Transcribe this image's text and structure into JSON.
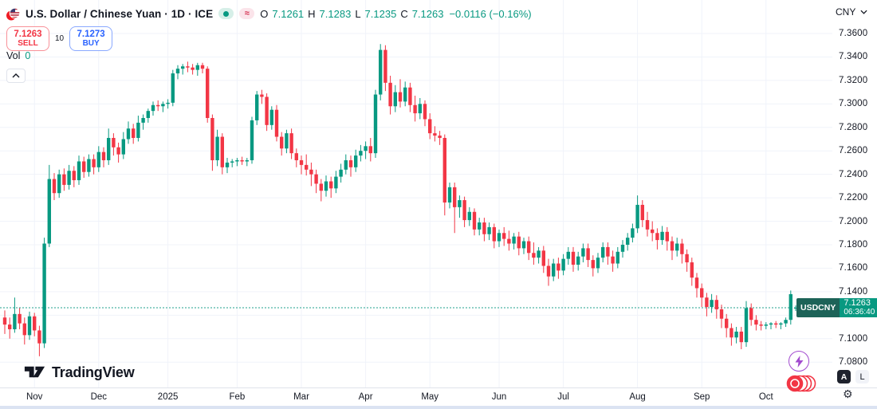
{
  "header": {
    "title": "U.S. Dollar / Chinese Yuan · 1D · ICE",
    "market_status": "open",
    "delay_badge": "≈",
    "ohlc": {
      "o_key": "O",
      "o": "7.1261",
      "h_key": "H",
      "h": "7.1283",
      "l_key": "L",
      "l": "7.1235",
      "c_key": "C",
      "c": "7.1263",
      "change": "−0.0116 (−0.16%)"
    }
  },
  "trade_panel": {
    "sell_price": "7.1263",
    "sell_label": "SELL",
    "spread": "10",
    "buy_price": "7.1273",
    "buy_label": "BUY"
  },
  "volume": {
    "label": "Vol",
    "value": "0"
  },
  "price_scale": {
    "currency": "CNY",
    "auto_label": "A",
    "log_label": "L",
    "gear": "⚙"
  },
  "price_label": {
    "symbol": "USDCNY",
    "price": "7.1263",
    "countdown": "06:36:40"
  },
  "footer": {
    "brand": "TradingView"
  },
  "colors": {
    "up": "#089981",
    "down": "#f23645",
    "buy_blue": "#2962ff",
    "sell_red": "#f23645",
    "grid": "#f0f3fa",
    "text": "#131722",
    "price_label_bg": "#089981",
    "symbol_tag_bg": "#1d6358"
  },
  "chart_data": {
    "type": "candlestick",
    "symbol": "USDCNY",
    "title": "U.S. Dollar / Chinese Yuan",
    "interval": "1D",
    "exchange": "ICE",
    "grid": true,
    "legend_position": "top-left",
    "ylim": [
      7.08,
      7.36
    ],
    "y_ticks": [
      7.36,
      7.34,
      7.32,
      7.3,
      7.28,
      7.26,
      7.24,
      7.22,
      7.2,
      7.18,
      7.16,
      7.14,
      7.12,
      7.1,
      7.08
    ],
    "x_labels": [
      {
        "label": "Nov",
        "i": 6
      },
      {
        "label": "Dec",
        "i": 19
      },
      {
        "label": "2025",
        "i": 33
      },
      {
        "label": "Feb",
        "i": 47
      },
      {
        "label": "Mar",
        "i": 60
      },
      {
        "label": "Apr",
        "i": 73
      },
      {
        "label": "May",
        "i": 86
      },
      {
        "label": "Jun",
        "i": 100
      },
      {
        "label": "Jul",
        "i": 113
      },
      {
        "label": "Aug",
        "i": 128
      },
      {
        "label": "Sep",
        "i": 141
      },
      {
        "label": "Oct",
        "i": 154
      }
    ],
    "last_price": 7.1263,
    "up_color": "#089981",
    "down_color": "#f23645",
    "grid_color": "#f0f3fa",
    "candles": [
      [
        7.118,
        7.124,
        7.104,
        7.112
      ],
      [
        7.112,
        7.118,
        7.1,
        7.108
      ],
      [
        7.108,
        7.135,
        7.105,
        7.121
      ],
      [
        7.121,
        7.126,
        7.108,
        7.113
      ],
      [
        7.113,
        7.118,
        7.095,
        7.103
      ],
      [
        7.103,
        7.123,
        7.099,
        7.119
      ],
      [
        7.119,
        7.122,
        7.102,
        7.107
      ],
      [
        7.107,
        7.111,
        7.085,
        7.096
      ],
      [
        7.096,
        7.186,
        7.092,
        7.181
      ],
      [
        7.181,
        7.248,
        7.178,
        7.236
      ],
      [
        7.236,
        7.241,
        7.218,
        7.224
      ],
      [
        7.224,
        7.244,
        7.22,
        7.24
      ],
      [
        7.24,
        7.245,
        7.226,
        7.231
      ],
      [
        7.231,
        7.248,
        7.227,
        7.243
      ],
      [
        7.243,
        7.247,
        7.229,
        7.235
      ],
      [
        7.235,
        7.256,
        7.231,
        7.251
      ],
      [
        7.251,
        7.255,
        7.237,
        7.242
      ],
      [
        7.242,
        7.257,
        7.238,
        7.253
      ],
      [
        7.253,
        7.257,
        7.24,
        7.246
      ],
      [
        7.246,
        7.264,
        7.242,
        7.259
      ],
      [
        7.259,
        7.263,
        7.246,
        7.252
      ],
      [
        7.252,
        7.279,
        7.248,
        7.271
      ],
      [
        7.271,
        7.275,
        7.256,
        7.263
      ],
      [
        7.263,
        7.267,
        7.25,
        7.257
      ],
      [
        7.257,
        7.276,
        7.253,
        7.27
      ],
      [
        7.27,
        7.285,
        7.266,
        7.279
      ],
      [
        7.279,
        7.283,
        7.266,
        7.271
      ],
      [
        7.271,
        7.29,
        7.268,
        7.284
      ],
      [
        7.284,
        7.291,
        7.278,
        7.288
      ],
      [
        7.288,
        7.296,
        7.284,
        7.294
      ],
      [
        7.294,
        7.302,
        7.29,
        7.299
      ],
      [
        7.299,
        7.303,
        7.294,
        7.298
      ],
      [
        7.298,
        7.302,
        7.293,
        7.3
      ],
      [
        7.3,
        7.304,
        7.296,
        7.301
      ],
      [
        7.301,
        7.329,
        7.298,
        7.326
      ],
      [
        7.326,
        7.333,
        7.321,
        7.33
      ],
      [
        7.33,
        7.334,
        7.325,
        7.332
      ],
      [
        7.332,
        7.336,
        7.327,
        7.331
      ],
      [
        7.331,
        7.334,
        7.325,
        7.329
      ],
      [
        7.329,
        7.335,
        7.324,
        7.333
      ],
      [
        7.333,
        7.335,
        7.326,
        7.33
      ],
      [
        7.33,
        7.332,
        7.284,
        7.288
      ],
      [
        7.288,
        7.291,
        7.243,
        7.252
      ],
      [
        7.252,
        7.278,
        7.247,
        7.272
      ],
      [
        7.272,
        7.275,
        7.24,
        7.246
      ],
      [
        7.246,
        7.254,
        7.241,
        7.25
      ],
      [
        7.25,
        7.253,
        7.246,
        7.251
      ],
      [
        7.251,
        7.254,
        7.247,
        7.252
      ],
      [
        7.252,
        7.255,
        7.248,
        7.251
      ],
      [
        7.251,
        7.254,
        7.247,
        7.252
      ],
      [
        7.252,
        7.289,
        7.249,
        7.286
      ],
      [
        7.286,
        7.311,
        7.282,
        7.308
      ],
      [
        7.308,
        7.312,
        7.3,
        7.306
      ],
      [
        7.306,
        7.309,
        7.277,
        7.282
      ],
      [
        7.282,
        7.298,
        7.278,
        7.295
      ],
      [
        7.295,
        7.299,
        7.268,
        7.272
      ],
      [
        7.272,
        7.276,
        7.256,
        7.262
      ],
      [
        7.262,
        7.278,
        7.258,
        7.275
      ],
      [
        7.275,
        7.279,
        7.253,
        7.258
      ],
      [
        7.258,
        7.262,
        7.246,
        7.252
      ],
      [
        7.252,
        7.256,
        7.24,
        7.248
      ],
      [
        7.248,
        7.257,
        7.239,
        7.244
      ],
      [
        7.244,
        7.25,
        7.23,
        7.24
      ],
      [
        7.24,
        7.244,
        7.224,
        7.232
      ],
      [
        7.232,
        7.236,
        7.217,
        7.226
      ],
      [
        7.226,
        7.239,
        7.221,
        7.234
      ],
      [
        7.234,
        7.238,
        7.22,
        7.228
      ],
      [
        7.228,
        7.243,
        7.224,
        7.238
      ],
      [
        7.238,
        7.249,
        7.233,
        7.244
      ],
      [
        7.244,
        7.257,
        7.24,
        7.252
      ],
      [
        7.252,
        7.256,
        7.238,
        7.246
      ],
      [
        7.246,
        7.261,
        7.242,
        7.256
      ],
      [
        7.256,
        7.265,
        7.251,
        7.26
      ],
      [
        7.26,
        7.268,
        7.253,
        7.264
      ],
      [
        7.264,
        7.271,
        7.251,
        7.258
      ],
      [
        7.258,
        7.312,
        7.254,
        7.308
      ],
      [
        7.308,
        7.351,
        7.303,
        7.346
      ],
      [
        7.346,
        7.35,
        7.311,
        7.318
      ],
      [
        7.318,
        7.324,
        7.291,
        7.298
      ],
      [
        7.298,
        7.316,
        7.293,
        7.31
      ],
      [
        7.31,
        7.321,
        7.297,
        7.302
      ],
      [
        7.302,
        7.319,
        7.298,
        7.314
      ],
      [
        7.314,
        7.318,
        7.293,
        7.299
      ],
      [
        7.299,
        7.307,
        7.285,
        7.292
      ],
      [
        7.292,
        7.305,
        7.287,
        7.3
      ],
      [
        7.3,
        7.303,
        7.281,
        7.287
      ],
      [
        7.287,
        7.292,
        7.27,
        7.275
      ],
      [
        7.275,
        7.281,
        7.268,
        7.273
      ],
      [
        7.273,
        7.277,
        7.265,
        7.271
      ],
      [
        7.271,
        7.274,
        7.205,
        7.216
      ],
      [
        7.216,
        7.233,
        7.211,
        7.229
      ],
      [
        7.229,
        7.233,
        7.19,
        7.212
      ],
      [
        7.212,
        7.222,
        7.203,
        7.218
      ],
      [
        7.218,
        7.221,
        7.195,
        7.201
      ],
      [
        7.201,
        7.212,
        7.196,
        7.208
      ],
      [
        7.208,
        7.211,
        7.188,
        7.193
      ],
      [
        7.193,
        7.203,
        7.188,
        7.199
      ],
      [
        7.199,
        7.203,
        7.183,
        7.189
      ],
      [
        7.189,
        7.199,
        7.184,
        7.195
      ],
      [
        7.195,
        7.198,
        7.177,
        7.183
      ],
      [
        7.183,
        7.193,
        7.178,
        7.19
      ],
      [
        7.19,
        7.195,
        7.179,
        7.185
      ],
      [
        7.185,
        7.192,
        7.175,
        7.181
      ],
      [
        7.181,
        7.19,
        7.176,
        7.187
      ],
      [
        7.187,
        7.191,
        7.171,
        7.177
      ],
      [
        7.177,
        7.186,
        7.172,
        7.183
      ],
      [
        7.183,
        7.187,
        7.167,
        7.173
      ],
      [
        7.173,
        7.182,
        7.163,
        7.169
      ],
      [
        7.169,
        7.178,
        7.164,
        7.175
      ],
      [
        7.175,
        7.179,
        7.156,
        7.162
      ],
      [
        7.162,
        7.168,
        7.145,
        7.153
      ],
      [
        7.153,
        7.168,
        7.149,
        7.164
      ],
      [
        7.164,
        7.169,
        7.151,
        7.158
      ],
      [
        7.158,
        7.172,
        7.154,
        7.168
      ],
      [
        7.168,
        7.178,
        7.163,
        7.174
      ],
      [
        7.174,
        7.178,
        7.157,
        7.163
      ],
      [
        7.163,
        7.174,
        7.158,
        7.17
      ],
      [
        7.17,
        7.181,
        7.165,
        7.177
      ],
      [
        7.177,
        7.181,
        7.161,
        7.167
      ],
      [
        7.167,
        7.171,
        7.153,
        7.16
      ],
      [
        7.16,
        7.173,
        7.156,
        7.169
      ],
      [
        7.169,
        7.182,
        7.165,
        7.178
      ],
      [
        7.178,
        7.182,
        7.163,
        7.17
      ],
      [
        7.17,
        7.175,
        7.157,
        7.164
      ],
      [
        7.164,
        7.178,
        7.16,
        7.174
      ],
      [
        7.174,
        7.184,
        7.169,
        7.18
      ],
      [
        7.18,
        7.19,
        7.175,
        7.186
      ],
      [
        7.186,
        7.198,
        7.182,
        7.194
      ],
      [
        7.194,
        7.222,
        7.19,
        7.214
      ],
      [
        7.214,
        7.218,
        7.195,
        7.201
      ],
      [
        7.201,
        7.208,
        7.187,
        7.193
      ],
      [
        7.193,
        7.2,
        7.183,
        7.19
      ],
      [
        7.19,
        7.194,
        7.176,
        7.184
      ],
      [
        7.184,
        7.196,
        7.18,
        7.191
      ],
      [
        7.191,
        7.195,
        7.175,
        7.183
      ],
      [
        7.183,
        7.187,
        7.167,
        7.175
      ],
      [
        7.175,
        7.186,
        7.17,
        7.181
      ],
      [
        7.181,
        7.185,
        7.164,
        7.172
      ],
      [
        7.172,
        7.176,
        7.157,
        7.165
      ],
      [
        7.165,
        7.169,
        7.145,
        7.152
      ],
      [
        7.152,
        7.156,
        7.135,
        7.143
      ],
      [
        7.143,
        7.147,
        7.127,
        7.135
      ],
      [
        7.135,
        7.139,
        7.119,
        7.127
      ],
      [
        7.127,
        7.138,
        7.122,
        7.133
      ],
      [
        7.133,
        7.137,
        7.117,
        7.125
      ],
      [
        7.125,
        7.129,
        7.109,
        7.117
      ],
      [
        7.117,
        7.121,
        7.101,
        7.109
      ],
      [
        7.109,
        7.113,
        7.094,
        7.101
      ],
      [
        7.101,
        7.11,
        7.096,
        7.106
      ],
      [
        7.106,
        7.11,
        7.091,
        7.097
      ],
      [
        7.097,
        7.132,
        7.093,
        7.126
      ],
      [
        7.126,
        7.13,
        7.111,
        7.116
      ],
      [
        7.116,
        7.12,
        7.107,
        7.112
      ],
      [
        7.112,
        7.115,
        7.107,
        7.111
      ],
      [
        7.111,
        7.114,
        7.108,
        7.112
      ],
      [
        7.112,
        7.114,
        7.108,
        7.113
      ],
      [
        7.113,
        7.115,
        7.109,
        7.112
      ],
      [
        7.112,
        7.114,
        7.108,
        7.113
      ],
      [
        7.113,
        7.118,
        7.11,
        7.116
      ],
      [
        7.116,
        7.141,
        7.112,
        7.1379
      ],
      [
        7.1261,
        7.1283,
        7.1235,
        7.1263
      ]
    ]
  }
}
